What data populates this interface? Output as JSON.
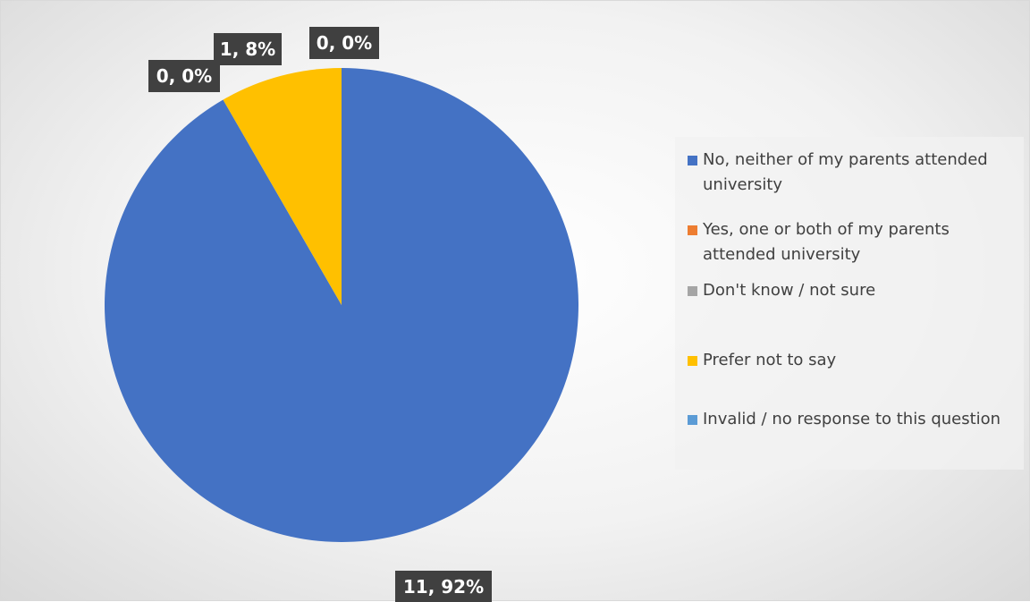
{
  "chart_data": {
    "type": "pie",
    "title": "",
    "categories": [
      "No, neither of my parents attended university",
      "Yes, one or both of my parents attended university",
      "Don't know / not sure",
      "Prefer not to say",
      "Invalid / no response to this question"
    ],
    "values": [
      11,
      0,
      0,
      1,
      0
    ],
    "data_labels": [
      "11, 92%",
      "",
      "0, 0%",
      "1, 8%",
      "0, 0%"
    ],
    "colors": [
      "#4472C4",
      "#ED7D31",
      "#A5A5A5",
      "#FFC000",
      "#5B9BD5"
    ],
    "legend_position": "right",
    "start_angle_deg": 0,
    "direction": "clockwise"
  },
  "legend": {
    "items": [
      {
        "label": "No, neither of my parents attended university",
        "color": "#4472C4"
      },
      {
        "label": "Yes, one or both of my parents attended university",
        "color": "#ED7D31"
      },
      {
        "label": "Don't know / not sure",
        "color": "#A5A5A5"
      },
      {
        "label": "Prefer not to say",
        "color": "#FFC000"
      },
      {
        "label": "Invalid / no response to this question",
        "color": "#5B9BD5"
      }
    ]
  }
}
